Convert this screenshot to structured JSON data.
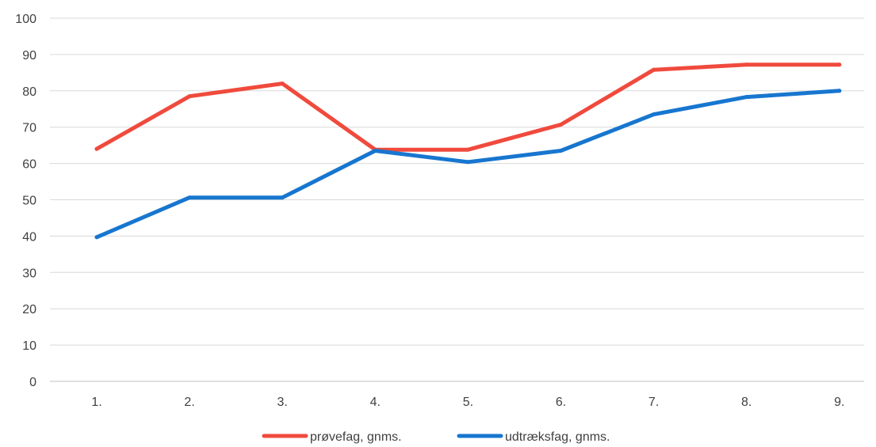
{
  "chart_data": {
    "type": "line",
    "categories": [
      "1.",
      "2.",
      "3.",
      "4.",
      "5.",
      "6.",
      "7.",
      "8.",
      "9."
    ],
    "series": [
      {
        "name": "prøvefag, gnms.",
        "color": "#F04A3D",
        "values": [
          64,
          78.5,
          82,
          63.8,
          63.8,
          70.7,
          85.8,
          87.2,
          87.2
        ]
      },
      {
        "name": "udtræksfag, gnms.",
        "color": "#1776CF",
        "values": [
          39.7,
          50.6,
          50.6,
          63.5,
          60.4,
          63.5,
          73.5,
          78.3,
          80
        ]
      }
    ],
    "ylim": [
      0,
      100
    ],
    "yticks": [
      0,
      10,
      20,
      30,
      40,
      50,
      60,
      70,
      80,
      90,
      100
    ],
    "grid": true,
    "legend_position": "bottom",
    "gridline_color": "#D9D9D9",
    "axis_line_color": "#BFBFBF"
  }
}
